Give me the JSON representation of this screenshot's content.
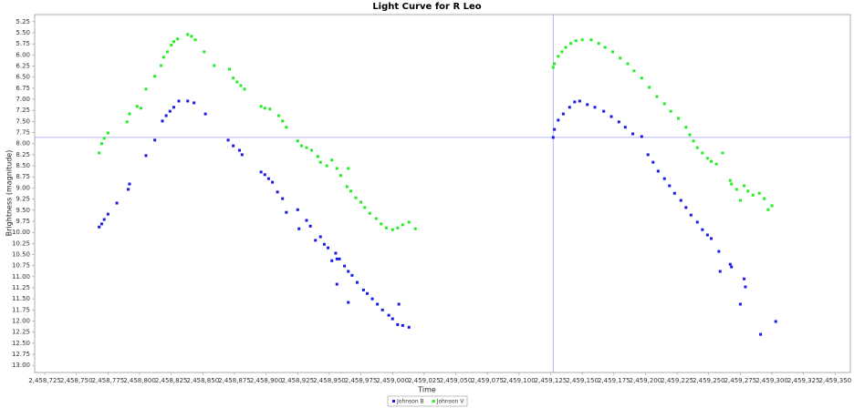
{
  "chart_data": {
    "type": "scatter",
    "title": "Light Curve for R Leo",
    "x_label": "Time",
    "y_label": "Brightness (magnitude)",
    "xlim": [
      2458717,
      2459362
    ],
    "ylim": [
      13.16,
      5.09
    ],
    "xticks": [
      {
        "value": 2458725,
        "label": "2,458,725"
      },
      {
        "value": 2458750,
        "label": "2,458,750"
      },
      {
        "value": 2458775,
        "label": "2,458,775"
      },
      {
        "value": 2458800,
        "label": "2,458,800"
      },
      {
        "value": 2458825,
        "label": "2,458,825"
      },
      {
        "value": 2458850,
        "label": "2,458,850"
      },
      {
        "value": 2458875,
        "label": "2,458,875"
      },
      {
        "value": 2458900,
        "label": "2,458,900"
      },
      {
        "value": 2458925,
        "label": "2,458,925"
      },
      {
        "value": 2458950,
        "label": "2,458,950"
      },
      {
        "value": 2458975,
        "label": "2,458,975"
      },
      {
        "value": 2459000,
        "label": "2,459,000"
      },
      {
        "value": 2459025,
        "label": "2,459,025"
      },
      {
        "value": 2459050,
        "label": "2,459,050"
      },
      {
        "value": 2459075,
        "label": "2,459,075"
      },
      {
        "value": 2459100,
        "label": "2,459,100"
      },
      {
        "value": 2459125,
        "label": "2,459,125"
      },
      {
        "value": 2459150,
        "label": "2,459,150"
      },
      {
        "value": 2459175,
        "label": "2,459,175"
      },
      {
        "value": 2459200,
        "label": "2,459,200"
      },
      {
        "value": 2459225,
        "label": "2,459,225"
      },
      {
        "value": 2459250,
        "label": "2,459,250"
      },
      {
        "value": 2459275,
        "label": "2,459,275"
      },
      {
        "value": 2459300,
        "label": "2,459,300"
      },
      {
        "value": 2459325,
        "label": "2,459,325"
      },
      {
        "value": 2459350,
        "label": "2,459,350"
      }
    ],
    "yticks": [
      5.25,
      {
        "value": 5.5,
        "label": "5.50"
      },
      5.75,
      {
        "value": 6,
        "label": "6.00"
      },
      6.25,
      {
        "value": 6.5,
        "label": "6.50"
      },
      6.75,
      {
        "value": 7,
        "label": "7.00"
      },
      7.25,
      {
        "value": 7.5,
        "label": "7.50"
      },
      7.75,
      {
        "value": 8,
        "label": "8.00"
      },
      8.25,
      {
        "value": 8.5,
        "label": "8.50"
      },
      8.75,
      {
        "value": 9,
        "label": "9.00"
      },
      9.25,
      {
        "value": 9.5,
        "label": "9.50"
      },
      9.75,
      {
        "value": 10,
        "label": "10.00"
      },
      10.25,
      {
        "value": 10.5,
        "label": "10.50"
      },
      10.75,
      {
        "value": 11,
        "label": "11.00"
      },
      11.25,
      {
        "value": 11.5,
        "label": "11.50"
      },
      11.75,
      {
        "value": 12,
        "label": "12.00"
      },
      12.25,
      {
        "value": 12.5,
        "label": "12.50"
      },
      12.75,
      {
        "value": 13,
        "label": "13.00"
      }
    ],
    "crosshair": {
      "x": 2459127,
      "y": 7.86
    },
    "grid": false,
    "legend": "bottom",
    "series": [
      {
        "name": "Johnson B",
        "color": "#1a1ae6",
        "x": [
          2458768,
          2458770,
          2458772,
          2458775,
          2458782,
          2458791,
          2458792,
          2458805,
          2458812,
          2458818,
          2458821,
          2458824,
          2458827,
          2458831,
          2458838,
          2458843,
          2458852,
          2458870,
          2458874,
          2458879,
          2458881,
          2458896,
          2458899,
          2458902,
          2458905,
          2458909,
          2458913,
          2458916,
          2458925,
          2458926,
          2458932,
          2458935,
          2458939,
          2458943,
          2458946,
          2458949,
          2458952,
          2458955,
          2458956,
          2458958,
          2458962,
          2458965,
          2458968,
          2458972,
          2458977,
          2458980,
          2458984,
          2458988,
          2458992,
          2458997,
          2459000,
          2459004,
          2459005,
          2459008,
          2459013,
          2458956,
          2458965,
          2459127,
          2459128,
          2459131,
          2459135,
          2459140,
          2459144,
          2459148,
          2459154,
          2459160,
          2459167,
          2459173,
          2459179,
          2459184,
          2459190,
          2459197,
          2459202,
          2459206,
          2459210,
          2459215,
          2459219,
          2459223,
          2459228,
          2459232,
          2459236,
          2459241,
          2459245,
          2459249,
          2459252,
          2459258,
          2459259,
          2459267,
          2459268,
          2459275,
          2459278,
          2459279,
          2459291,
          2459303
        ],
        "values": [
          9.88,
          9.81,
          9.71,
          9.59,
          9.34,
          9.03,
          8.91,
          8.27,
          7.92,
          7.49,
          7.37,
          7.27,
          7.18,
          7.04,
          7.04,
          7.08,
          7.33,
          7.92,
          8.05,
          8.15,
          8.25,
          8.64,
          8.7,
          8.79,
          8.87,
          9.09,
          9.24,
          9.55,
          9.49,
          9.92,
          9.73,
          9.86,
          10.18,
          10.1,
          10.27,
          10.35,
          10.64,
          10.47,
          10.6,
          10.6,
          10.76,
          10.88,
          10.97,
          11.13,
          11.3,
          11.38,
          11.5,
          11.62,
          11.75,
          11.87,
          11.95,
          12.08,
          11.62,
          12.1,
          12.14,
          11.17,
          11.58,
          7.86,
          7.68,
          7.47,
          7.33,
          7.18,
          7.06,
          7.04,
          7.12,
          7.18,
          7.27,
          7.39,
          7.51,
          7.63,
          7.78,
          7.84,
          8.25,
          8.42,
          8.62,
          8.79,
          8.95,
          9.12,
          9.28,
          9.44,
          9.61,
          9.77,
          9.94,
          10.06,
          10.14,
          10.43,
          10.88,
          10.72,
          10.78,
          11.62,
          11.05,
          11.23,
          12.3,
          12.01
        ]
      },
      {
        "name": "Johnson V",
        "color": "#22ee22",
        "x": [
          2458768,
          2458770,
          2458772,
          2458775,
          2458790,
          2458792,
          2458798,
          2458801,
          2458805,
          2458812,
          2458817,
          2458819,
          2458822,
          2458825,
          2458827,
          2458830,
          2458838,
          2458841,
          2458844,
          2458851,
          2458859,
          2458871,
          2458874,
          2458877,
          2458880,
          2458883,
          2458896,
          2458899,
          2458903,
          2458910,
          2458913,
          2458916,
          2458925,
          2458928,
          2458932,
          2458936,
          2458941,
          2458943,
          2458948,
          2458952,
          2458956,
          2458959,
          2458964,
          2458965,
          2458967,
          2458971,
          2458975,
          2458978,
          2458982,
          2458987,
          2458991,
          2458995,
          2459000,
          2459004,
          2459008,
          2459013,
          2459018,
          2459127,
          2459128,
          2459131,
          2459134,
          2459137,
          2459141,
          2459145,
          2459150,
          2459157,
          2459163,
          2459168,
          2459174,
          2459180,
          2459186,
          2459191,
          2459197,
          2459203,
          2459209,
          2459215,
          2459220,
          2459226,
          2459232,
          2459235,
          2459238,
          2459241,
          2459245,
          2459249,
          2459252,
          2459256,
          2459261,
          2459267,
          2459268,
          2459272,
          2459275,
          2459278,
          2459281,
          2459285,
          2459290,
          2459294,
          2459297,
          2459300
        ],
        "values": [
          8.21,
          8.0,
          7.88,
          7.76,
          7.51,
          7.33,
          7.16,
          7.2,
          6.77,
          6.48,
          6.24,
          6.05,
          5.93,
          5.78,
          5.7,
          5.64,
          5.54,
          5.58,
          5.66,
          5.93,
          6.24,
          6.32,
          6.52,
          6.61,
          6.69,
          6.77,
          7.16,
          7.2,
          7.22,
          7.37,
          7.49,
          7.63,
          7.94,
          8.05,
          8.09,
          8.15,
          8.29,
          8.42,
          8.5,
          8.37,
          8.56,
          8.72,
          8.97,
          8.56,
          9.07,
          9.22,
          9.32,
          9.44,
          9.57,
          9.69,
          9.81,
          9.9,
          9.94,
          9.9,
          9.83,
          9.77,
          9.92,
          6.28,
          6.2,
          6.03,
          5.93,
          5.83,
          5.74,
          5.68,
          5.66,
          5.66,
          5.74,
          5.83,
          5.93,
          6.07,
          6.2,
          6.36,
          6.52,
          6.73,
          6.94,
          7.1,
          7.27,
          7.43,
          7.63,
          7.8,
          7.94,
          8.09,
          8.21,
          8.33,
          8.4,
          8.46,
          8.21,
          8.83,
          8.91,
          9.03,
          9.28,
          8.95,
          9.07,
          9.16,
          9.12,
          9.24,
          9.49,
          9.4
        ]
      }
    ]
  }
}
